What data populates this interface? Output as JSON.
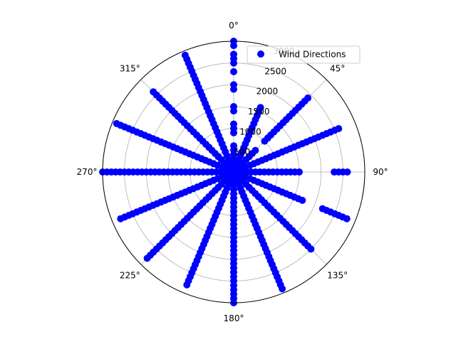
{
  "chart_data": {
    "type": "scatter",
    "projection": "polar",
    "theta_zero_location": "N",
    "theta_direction": "clockwise",
    "theta_tick_labels": [
      "0°",
      "45°",
      "90°",
      "135°",
      "180°",
      "225°",
      "270°",
      "315°"
    ],
    "r_tick_labels": [
      "500",
      "1000",
      "1500",
      "2000",
      "2500",
      "3000"
    ],
    "rlim": [
      0,
      3000
    ],
    "grid": true,
    "legend": {
      "placement": "top-right"
    },
    "marker_color": "#0000ff",
    "series": [
      {
        "name": "Wind Directions",
        "points": [
          {
            "dir": 0,
            "speed": [
              0,
              50,
              100,
              150,
              200,
              250,
              300,
              400,
              500,
              600,
              900,
              1000,
              1100,
              1400,
              1500,
              1900,
              2000,
              2300,
              2500,
              2600,
              2700,
              2900,
              3000
            ]
          },
          {
            "dir": 22.5,
            "speed": [
              0,
              100,
              200,
              300,
              400,
              500,
              600,
              700,
              800,
              900,
              1000,
              1100,
              1200,
              1300,
              1400,
              1500,
              1600
            ]
          },
          {
            "dir": 45,
            "speed": [
              0,
              100,
              200,
              300,
              400,
              500,
              600,
              700,
              1000,
              1100,
              1200,
              1300,
              1400,
              1500,
              1600,
              1700,
              1800,
              1900,
              2000,
              2100,
              2200,
              2300,
              2400
            ]
          },
          {
            "dir": 67.5,
            "speed": [
              0,
              100,
              200,
              300,
              400,
              500,
              600,
              700,
              800,
              900,
              1000,
              1100,
              1200,
              1300,
              1400,
              1500,
              1600,
              1700,
              1800,
              1900,
              2000,
              2100,
              2200,
              2300,
              2400,
              2500,
              2600
            ]
          },
          {
            "dir": 90,
            "speed": [
              0,
              100,
              200,
              300,
              400,
              500,
              600,
              700,
              800,
              900,
              1000,
              1100,
              1200,
              1300,
              1400,
              1500,
              2300,
              2400,
              2500,
              2600
            ]
          },
          {
            "dir": 112.5,
            "speed": [
              0,
              100,
              200,
              300,
              400,
              500,
              600,
              700,
              800,
              900,
              1000,
              1100,
              1200,
              1300,
              1400,
              1500,
              1600,
              1700,
              2200,
              2300,
              2400,
              2500,
              2600,
              2700,
              2800
            ]
          },
          {
            "dir": 135,
            "speed": [
              0,
              100,
              200,
              300,
              400,
              500,
              600,
              700,
              800,
              900,
              1000,
              1100,
              1200,
              1300,
              1400,
              1500,
              1600,
              1700,
              1800,
              1900,
              2000,
              2100,
              2200,
              2300,
              2400,
              2500
            ]
          },
          {
            "dir": 157.5,
            "speed": [
              0,
              100,
              200,
              300,
              400,
              500,
              600,
              700,
              800,
              900,
              1000,
              1100,
              1200,
              1300,
              1400,
              1500,
              1600,
              1700,
              1800,
              1900,
              2000,
              2100,
              2200,
              2300,
              2400,
              2500,
              2600,
              2700,
              2800,
              2900
            ]
          },
          {
            "dir": 180,
            "speed": [
              0,
              100,
              200,
              300,
              400,
              500,
              600,
              700,
              800,
              900,
              1000,
              1100,
              1200,
              1300,
              1400,
              1500,
              1600,
              1700,
              1800,
              1900,
              2000,
              2100,
              2200,
              2300,
              2400,
              2500,
              2600,
              2700,
              2800,
              2900,
              3000
            ]
          },
          {
            "dir": 202.5,
            "speed": [
              0,
              100,
              200,
              300,
              400,
              500,
              600,
              700,
              800,
              900,
              1000,
              1100,
              1200,
              1300,
              1400,
              1500,
              1600,
              1700,
              1800,
              1900,
              2000,
              2100,
              2200,
              2300,
              2400,
              2500,
              2600,
              2700,
              2800
            ]
          },
          {
            "dir": 225,
            "speed": [
              0,
              100,
              200,
              300,
              400,
              500,
              600,
              700,
              800,
              900,
              1000,
              1100,
              1200,
              1300,
              1400,
              1500,
              1600,
              1700,
              1800,
              1900,
              2000,
              2100,
              2200,
              2300,
              2400,
              2500,
              2600,
              2700,
              2800
            ]
          },
          {
            "dir": 247.5,
            "speed": [
              0,
              100,
              200,
              300,
              400,
              500,
              600,
              700,
              800,
              900,
              1000,
              1100,
              1200,
              1300,
              1400,
              1500,
              1600,
              1700,
              1800,
              1900,
              2000,
              2100,
              2200,
              2300,
              2400,
              2500,
              2600,
              2700,
              2800
            ]
          },
          {
            "dir": 270,
            "speed": [
              0,
              100,
              200,
              300,
              400,
              500,
              600,
              700,
              800,
              900,
              1000,
              1100,
              1200,
              1300,
              1400,
              1500,
              1600,
              1700,
              1800,
              1900,
              2000,
              2100,
              2200,
              2300,
              2400,
              2500,
              2600,
              2700,
              2800,
              2900,
              3000
            ]
          },
          {
            "dir": 292.5,
            "speed": [
              0,
              100,
              200,
              300,
              400,
              500,
              600,
              700,
              800,
              900,
              1000,
              1100,
              1200,
              1300,
              1400,
              1500,
              1600,
              1700,
              1800,
              1900,
              2000,
              2100,
              2200,
              2300,
              2400,
              2500,
              2600,
              2700,
              2800,
              2900
            ]
          },
          {
            "dir": 315,
            "speed": [
              0,
              100,
              200,
              300,
              400,
              500,
              600,
              700,
              800,
              900,
              1000,
              1100,
              1200,
              1300,
              1400,
              1500,
              1600,
              1700,
              1800,
              1900,
              2000,
              2100,
              2200,
              2300,
              2400,
              2500,
              2600
            ]
          },
          {
            "dir": 337.5,
            "speed": [
              0,
              100,
              200,
              300,
              400,
              500,
              600,
              700,
              800,
              900,
              1000,
              1100,
              1200,
              1300,
              1400,
              1500,
              1600,
              1700,
              1800,
              1900,
              2000,
              2100,
              2200,
              2300,
              2400,
              2500,
              2600,
              2700,
              2800,
              2900
            ]
          }
        ]
      }
    ]
  }
}
